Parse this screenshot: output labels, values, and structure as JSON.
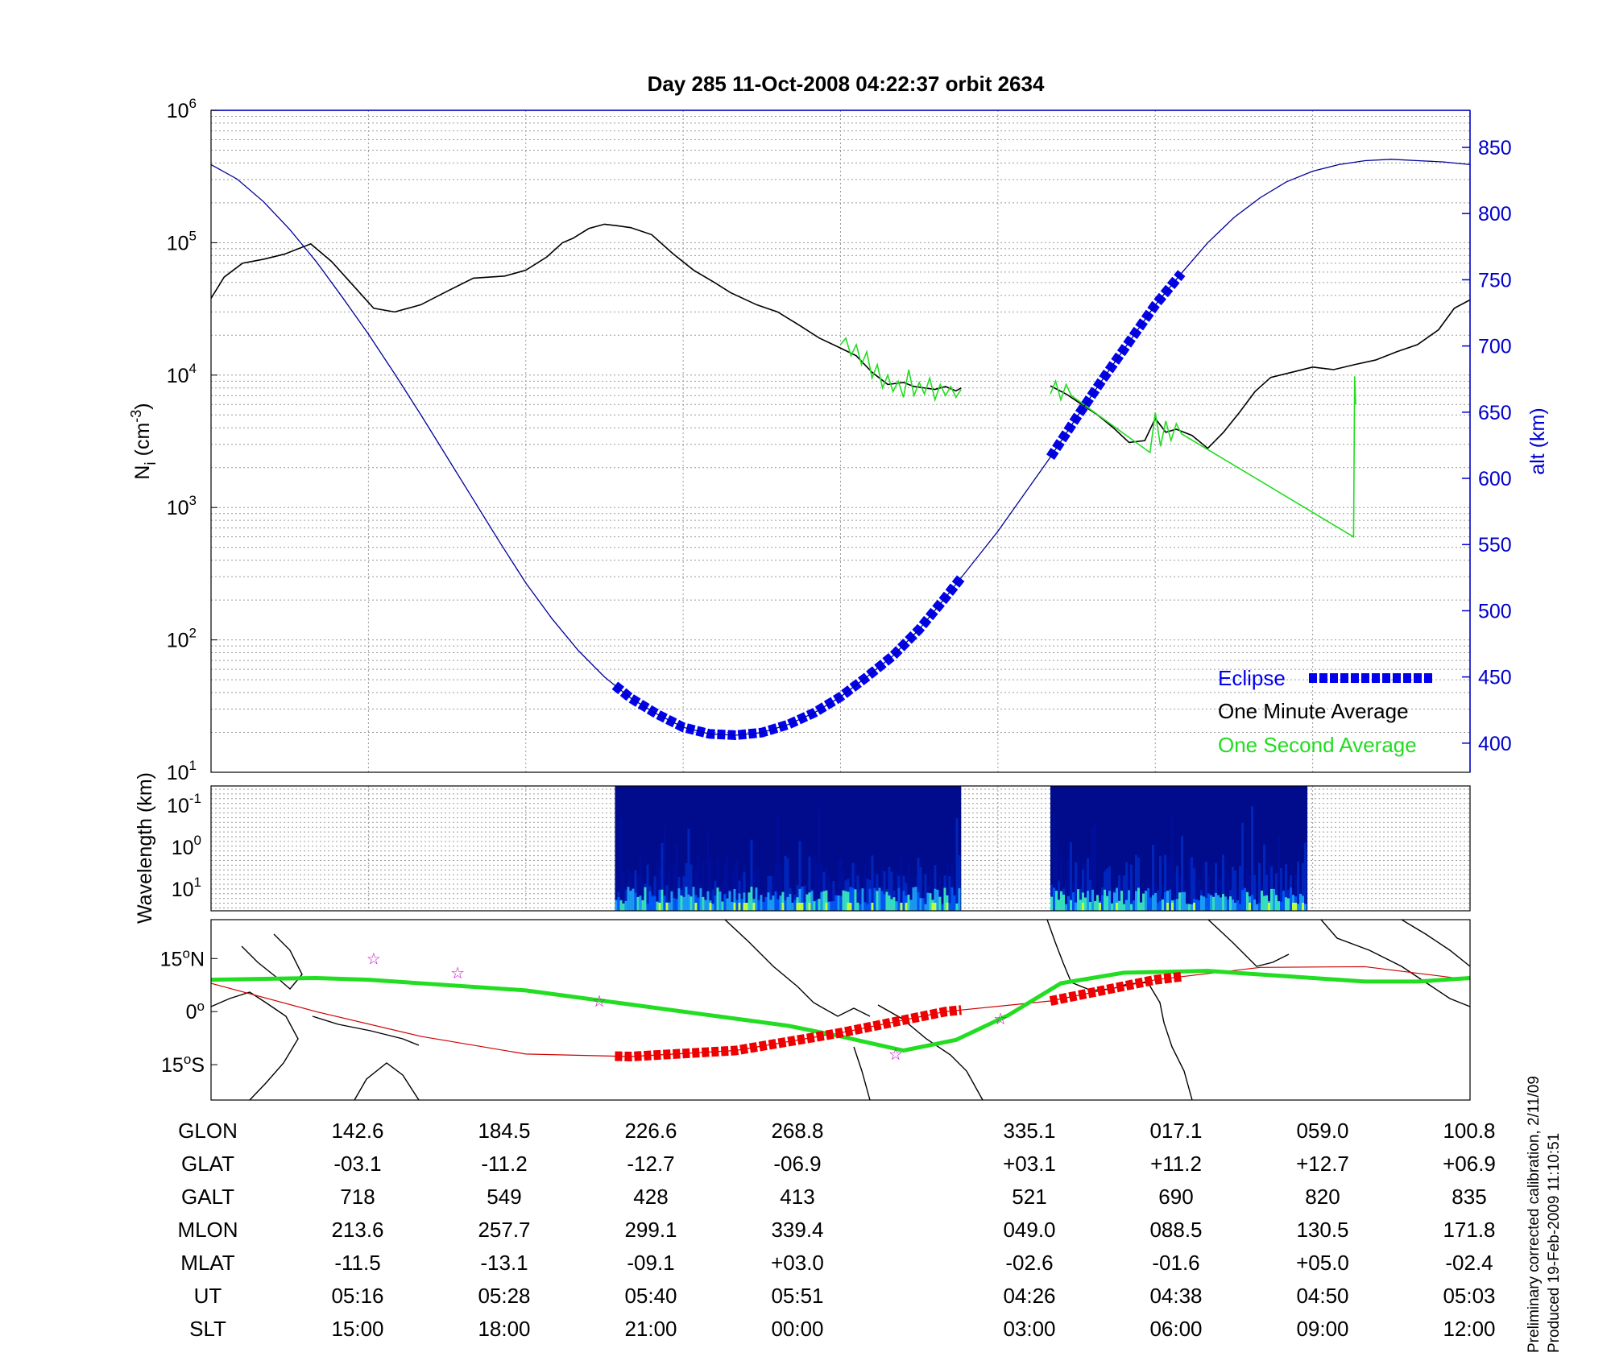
{
  "chart_data": [
    {
      "type": "line",
      "title": "Day 285  11-Oct-2008 04:22:37   orbit 2634",
      "ylabel": "N",
      "ylabel_sub": "i",
      "ylabel_unit": "(cm",
      "ylabel_unit_sup": "-3",
      "ylabel_unit_close": ")",
      "y_scale": "log",
      "ylim": [
        10,
        1000000
      ],
      "y_ticks": [
        {
          "base": "10",
          "exp": "1",
          "value": 10
        },
        {
          "base": "10",
          "exp": "2",
          "value": 100
        },
        {
          "base": "10",
          "exp": "3",
          "value": 1000
        },
        {
          "base": "10",
          "exp": "4",
          "value": 10000
        },
        {
          "base": "10",
          "exp": "5",
          "value": 100000
        },
        {
          "base": "10",
          "exp": "6",
          "value": 1000000
        }
      ],
      "y2label": "alt (km)",
      "y2lim": [
        378,
        878
      ],
      "y2_ticks": [
        "400",
        "450",
        "500",
        "550",
        "600",
        "650",
        "700",
        "750",
        "800",
        "850"
      ],
      "x_tick_labels_slt": [
        "15:00",
        "18:00",
        "21:00",
        "00:00",
        "03:00",
        "06:00",
        "09:00",
        "12:00"
      ],
      "x_range_slt_hours": [
        12,
        36
      ],
      "grid": true,
      "legend": {
        "placement": "bottom-right",
        "entries": [
          {
            "label": "Eclipse",
            "color": "#0000ee"
          },
          {
            "label": "One Minute Average",
            "color": "#000000"
          },
          {
            "label": "One Second Average",
            "color": "#22dd22"
          }
        ]
      },
      "series": [
        {
          "name": "One Minute Average",
          "color": "#000000",
          "x_slt_hours": [
            12.0,
            12.25,
            12.6,
            13.0,
            13.4,
            13.9,
            14.3,
            14.7,
            15.1,
            15.5,
            16.0,
            16.5,
            17.0,
            17.6,
            18.0,
            18.4,
            18.7,
            18.9,
            19.2,
            19.5,
            19.7,
            20.0,
            20.4,
            20.8,
            21.2,
            21.6,
            21.9,
            22.4,
            22.8,
            23.2,
            23.6,
            24.0,
            24.3,
            24.6,
            24.9,
            25.2,
            25.4,
            25.6,
            25.8,
            26.0,
            26.2,
            26.3
          ],
          "y_ni": [
            38000,
            55000,
            70000,
            75000,
            82000,
            98000,
            72000,
            48000,
            32000,
            30000,
            34000,
            43000,
            54000,
            56000,
            62000,
            78000,
            100000,
            108000,
            128000,
            138000,
            135000,
            130000,
            115000,
            83000,
            62000,
            50000,
            42000,
            34000,
            30000,
            24000,
            19000,
            16000,
            14000,
            10500,
            8500,
            8800,
            8200,
            8000,
            7800,
            8200,
            7600,
            8000
          ]
        },
        {
          "name": "One Minute Average",
          "color": "#000000",
          "x_slt_hours": [
            28.0,
            28.3,
            28.6,
            28.9,
            29.2,
            29.5,
            29.8,
            30.0,
            30.2,
            30.4,
            30.7,
            31.0,
            31.3,
            31.6,
            31.9,
            32.2,
            32.6,
            33.0,
            33.4,
            33.8,
            34.2,
            34.6,
            35.0,
            35.4,
            35.7,
            36.0
          ],
          "y_ni": [
            8300,
            7200,
            6000,
            5000,
            4000,
            3100,
            3200,
            4700,
            3700,
            3900,
            3500,
            2800,
            3700,
            5200,
            7500,
            9600,
            10500,
            11500,
            11000,
            12000,
            13000,
            15000,
            17000,
            22000,
            32000,
            37000
          ]
        },
        {
          "name": "One Second Average",
          "color": "#22dd22",
          "x_slt_hours": [
            24.0,
            24.1,
            24.2,
            24.3,
            24.4,
            24.5,
            24.6,
            24.7,
            24.8,
            24.9,
            25.0,
            25.1,
            25.2,
            25.3,
            25.4,
            25.5,
            25.6,
            25.7,
            25.8,
            25.9,
            26.0,
            26.1,
            26.2,
            26.3
          ],
          "y_ni": [
            17000,
            19000,
            14000,
            17000,
            12000,
            15000,
            9500,
            12000,
            8000,
            10000,
            7500,
            9000,
            6800,
            11000,
            7000,
            8800,
            7200,
            9500,
            6500,
            8500,
            7000,
            8200,
            6800,
            7800
          ]
        },
        {
          "name": "One Second Average",
          "color": "#22dd22",
          "x_slt_hours": [
            28.0,
            28.1,
            28.2,
            28.3,
            28.4,
            29.9,
            30.0,
            30.1,
            30.2,
            30.3,
            30.4,
            30.5,
            33.78,
            33.8,
            33.82
          ],
          "y_ni": [
            7200,
            9000,
            6500,
            8500,
            7000,
            2600,
            5200,
            2900,
            4500,
            3200,
            4300,
            3600,
            600,
            9800,
            6000
          ]
        },
        {
          "name": "alt",
          "color": "#000099",
          "axis": "right",
          "x_slt_hours": [
            12.0,
            12.5,
            13.0,
            13.5,
            14.0,
            14.5,
            15.0,
            15.5,
            16.0,
            16.5,
            17.0,
            17.5,
            18.0,
            18.5,
            19.0,
            19.5,
            20.0,
            20.5,
            21.0,
            21.5,
            22.0,
            22.5,
            23.0,
            23.5,
            24.0,
            24.5,
            25.0,
            25.5,
            26.0,
            26.5,
            27.0,
            27.5,
            28.0,
            28.5,
            29.0,
            29.5,
            30.0,
            30.5,
            31.0,
            31.5,
            32.0,
            32.5,
            33.0,
            33.5,
            34.0,
            34.5,
            35.0,
            35.5,
            36.0
          ],
          "y_alt_km": [
            837,
            826,
            809,
            788,
            764,
            737,
            709,
            679,
            648,
            616,
            584,
            552,
            521,
            494,
            470,
            450,
            434,
            422,
            412,
            407,
            406,
            408,
            414,
            423,
            435,
            450,
            466,
            486,
            510,
            535,
            560,
            588,
            616,
            646,
            675,
            703,
            731,
            755,
            778,
            797,
            812,
            824,
            832,
            837,
            840,
            841,
            840,
            839,
            837
          ]
        }
      ],
      "eclipse_segments": [
        {
          "x_slt_hours": [
            19.7,
            26.3
          ]
        },
        {
          "x_slt_hours": [
            28.0,
            30.5
          ]
        }
      ]
    },
    {
      "type": "heatmap",
      "ylabel": "Wavelength (km)",
      "y_ticks": [
        {
          "base": "10",
          "exp": "-1"
        },
        {
          "base": "10",
          "exp": "0"
        },
        {
          "base": "10",
          "exp": "1"
        }
      ],
      "segments_slt_hours": [
        [
          19.7,
          26.3
        ],
        [
          28.0,
          32.9
        ]
      ],
      "colormap": [
        "#000070",
        "#0010a0",
        "#0030d0",
        "#0060ff",
        "#20b0ff",
        "#40ffc0",
        "#c0ff40"
      ]
    },
    {
      "type": "map",
      "y_ticks": [
        {
          "deg": "15",
          "sym": "o",
          "hemi": "N"
        },
        {
          "deg": "0",
          "sym": "o",
          "hemi": ""
        },
        {
          "deg": "15",
          "sym": "o",
          "hemi": "S"
        }
      ],
      "lat_range": [
        -25,
        26
      ],
      "track": {
        "color": "#cc0000",
        "x_slt_hours": [
          12,
          14,
          16,
          18,
          20,
          22,
          24,
          26,
          28,
          30,
          32,
          34,
          36
        ],
        "lat": [
          8,
          0,
          -7,
          -12,
          -12.7,
          -11,
          -6,
          0,
          3,
          9,
          12.5,
          12.7,
          9
        ]
      },
      "eclipse_track": [
        {
          "x_slt_hours": [
            19.7,
            26.3
          ]
        },
        {
          "x_slt_hours": [
            28.0,
            30.5
          ]
        }
      ],
      "dip_equator": {
        "color": "#22dd22",
        "x_slt_hours": [
          12,
          14,
          15,
          16,
          18,
          20,
          22,
          23,
          24,
          25.2,
          26.2,
          27.2,
          28.2,
          29.4,
          31,
          32.5,
          34,
          35,
          36
        ],
        "lat": [
          9,
          9.5,
          9,
          8,
          6,
          2,
          -2,
          -4,
          -7,
          -11,
          -8,
          -1,
          8,
          11,
          11.5,
          10,
          8.5,
          8.5,
          9.5
        ]
      },
      "stars": [
        {
          "x_slt_hours": 15.1,
          "lat": 15
        },
        {
          "x_slt_hours": 16.7,
          "lat": 11
        },
        {
          "x_slt_hours": 19.4,
          "lat": 3
        },
        {
          "x_slt_hours": 25.05,
          "lat": -12
        },
        {
          "x_slt_hours": 27.05,
          "lat": -2
        }
      ]
    }
  ],
  "table": {
    "rows": [
      {
        "label": "GLON",
        "values": [
          "142.6",
          "184.5",
          "226.6",
          "268.8",
          "335.1",
          "017.1",
          "059.0",
          "100.8"
        ]
      },
      {
        "label": "GLAT",
        "values": [
          "-03.1",
          "-11.2",
          "-12.7",
          "-06.9",
          "+03.1",
          "+11.2",
          "+12.7",
          "+06.9"
        ]
      },
      {
        "label": "GALT",
        "values": [
          "718",
          "549",
          "428",
          "413",
          "521",
          "690",
          "820",
          "835"
        ]
      },
      {
        "label": "MLON",
        "values": [
          "213.6",
          "257.7",
          "299.1",
          "339.4",
          "049.0",
          "088.5",
          "130.5",
          "171.8"
        ]
      },
      {
        "label": "MLAT",
        "values": [
          "-11.5",
          "-13.1",
          "-09.1",
          "+03.0",
          "-02.6",
          "-01.6",
          "+05.0",
          "-02.4"
        ]
      },
      {
        "label": "UT",
        "values": [
          "05:16",
          "05:28",
          "05:40",
          "05:51",
          "04:26",
          "04:38",
          "04:50",
          "05:03"
        ]
      },
      {
        "label": "SLT",
        "values": [
          "15:00",
          "18:00",
          "21:00",
          "00:00",
          "03:00",
          "06:00",
          "09:00",
          "12:00"
        ]
      }
    ]
  },
  "footnote": {
    "line1": "Preliminary corrected calibration, 2/11/09",
    "line2": "Produced 19-Feb-2009 11:10:51"
  }
}
